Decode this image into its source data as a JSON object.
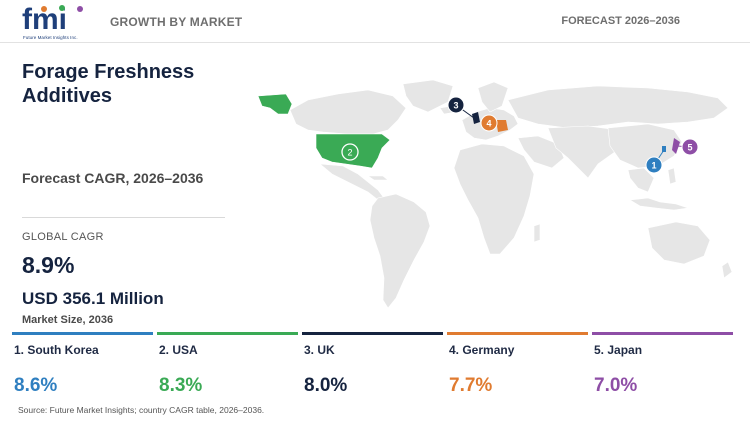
{
  "header": {
    "logo_text": "fmi",
    "logo_tagline": "Future Market Insights Inc.",
    "left_label": "GROWTH BY MARKET",
    "right_label": "FORECAST 2026–2036"
  },
  "title": "Forage Freshness Additives",
  "forecast_label": "Forecast CAGR, 2026–2036",
  "global": {
    "label": "GLOBAL CAGR",
    "cagr": "8.9%",
    "market_value": "USD 356.1 Million",
    "market_label": "Market Size, 2036"
  },
  "countries": [
    {
      "rank": "1",
      "name": "1. South Korea",
      "cagr": "8.6%",
      "color": "#2f7fc0"
    },
    {
      "rank": "2",
      "name": "2. USA",
      "cagr": "8.3%",
      "color": "#3aaa55"
    },
    {
      "rank": "3",
      "name": "3. UK",
      "cagr": "8.0%",
      "color": "#15233f"
    },
    {
      "rank": "4",
      "name": "4. Germany",
      "cagr": "7.7%",
      "color": "#e07b30"
    },
    {
      "rank": "5",
      "name": "5. Japan",
      "cagr": "7.0%",
      "color": "#8e4ea6"
    }
  ],
  "map": {
    "land_color": "#e6e6e6",
    "highlighted": [
      "USA",
      "UK",
      "Germany",
      "South Korea",
      "Japan",
      "Alaska"
    ]
  },
  "source": "Source: Future Market Insights; country CAGR table, 2026–2036."
}
